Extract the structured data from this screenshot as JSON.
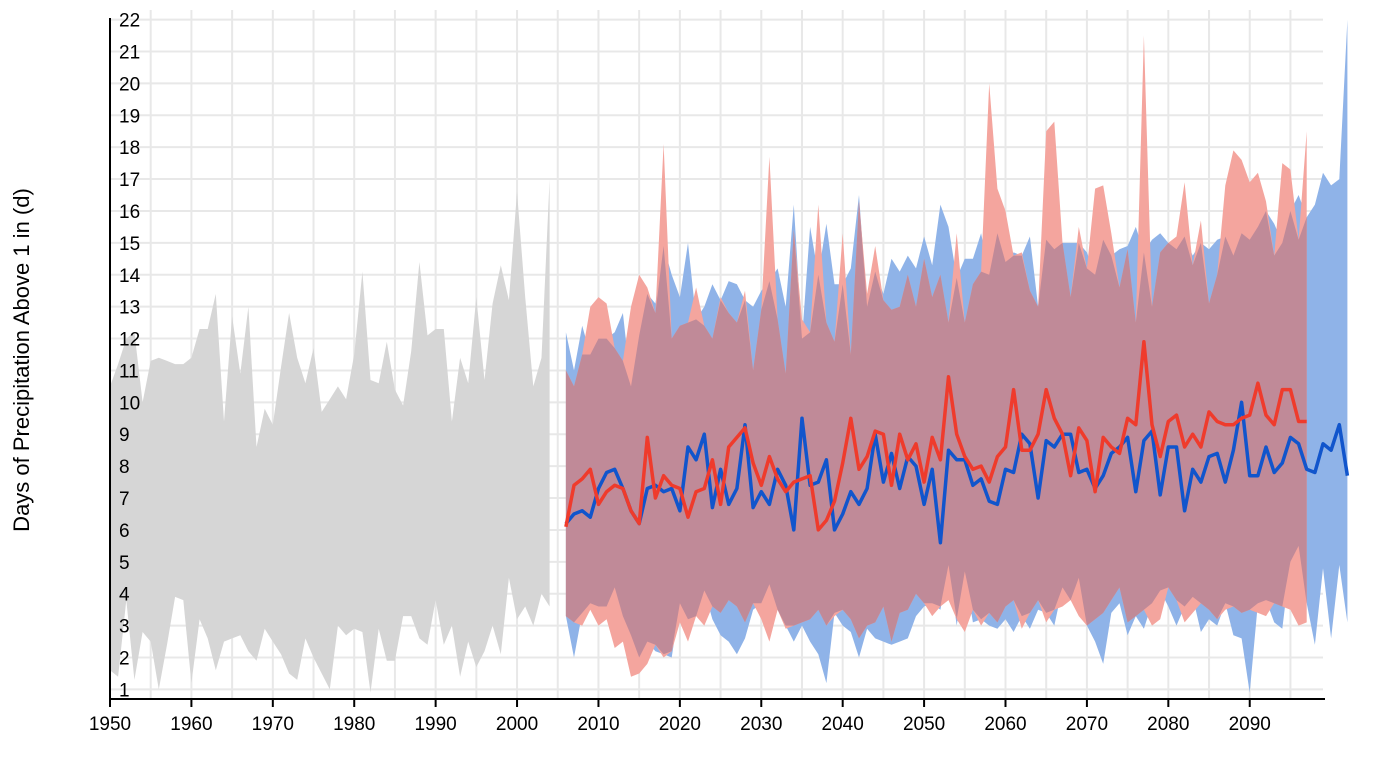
{
  "chart_data": {
    "type": "area",
    "title": "",
    "xlabel": "",
    "ylabel": "Days of Precipitation Above 1 in (d)",
    "xlim": [
      1950,
      2099
    ],
    "ylim": [
      0.7,
      22.3
    ],
    "x_ticks": [
      1950,
      1960,
      1970,
      1980,
      1990,
      2000,
      2010,
      2020,
      2030,
      2040,
      2050,
      2060,
      2070,
      2080,
      2090
    ],
    "y_ticks": [
      1,
      2,
      3,
      4,
      5,
      6,
      7,
      8,
      9,
      10,
      11,
      12,
      13,
      14,
      15,
      16,
      17,
      18,
      19,
      20,
      21,
      22
    ],
    "grid": true,
    "legend": "none",
    "colors": {
      "historical_band": "#d6d6d6",
      "lower_band": "#8fb3e8",
      "higher_band": "#f4a59e",
      "overlap_band": "#c08a98",
      "lower_line": "#1155cc",
      "higher_line": "#ef3b2c",
      "grid": "#e8e8e8",
      "axis": "#000000"
    },
    "historical": {
      "x_start": 1950,
      "max": [
        10.5,
        11.2,
        12.0,
        12.2,
        10.0,
        11.3,
        11.4,
        11.3,
        11.2,
        11.2,
        11.4,
        12.3,
        12.3,
        13.4,
        9.4,
        12.7,
        10.9,
        13.0,
        8.6,
        9.8,
        9.3,
        11.1,
        12.8,
        11.4,
        10.6,
        11.7,
        9.7,
        10.1,
        10.5,
        10.1,
        11.5,
        14.1,
        10.7,
        10.6,
        11.9,
        10.4,
        9.9,
        11.6,
        14.4,
        12.1,
        12.3,
        12.3,
        9.4,
        11.4,
        10.6,
        13.3,
        10.7,
        13.1,
        14.3,
        13.2,
        16.6,
        13.3,
        10.5,
        11.4,
        17.0
      ],
      "min": [
        1.6,
        1.4,
        3.8,
        1.3,
        2.8,
        2.5,
        1.0,
        2.4,
        3.9,
        3.8,
        1.2,
        3.2,
        2.6,
        1.6,
        2.5,
        2.6,
        2.7,
        2.2,
        1.9,
        2.9,
        2.5,
        2.1,
        1.5,
        1.3,
        2.6,
        2.0,
        1.5,
        1.0,
        3.0,
        2.7,
        2.9,
        2.8,
        0.9,
        2.9,
        1.9,
        1.9,
        3.3,
        3.3,
        2.6,
        2.4,
        3.8,
        2.4,
        3.0,
        1.4,
        2.5,
        1.7,
        2.2,
        3.0,
        2.1,
        4.5,
        3.2,
        3.6,
        3.0,
        4.0,
        3.6
      ]
    },
    "series": [
      {
        "key": "lower",
        "x_start": 2006,
        "values": [
          6.2,
          6.5,
          6.6,
          6.4,
          7.3,
          7.8,
          7.9,
          7.3,
          6.6,
          6.2,
          7.3,
          7.4,
          7.2,
          7.3,
          6.6,
          8.6,
          8.2,
          9.0,
          6.7,
          7.9,
          6.8,
          7.3,
          9.3,
          6.7,
          7.2,
          6.8,
          7.9,
          7.4,
          6.0,
          9.5,
          7.4,
          7.5,
          8.2,
          6.0,
          6.5,
          7.2,
          6.8,
          7.3,
          9.0,
          7.5,
          8.4,
          7.3,
          8.3,
          8.0,
          6.8,
          7.9,
          5.6,
          8.5,
          8.2,
          8.2,
          7.4,
          7.6,
          6.9,
          6.8,
          7.9,
          7.8,
          9.0,
          8.7,
          7.0,
          8.8,
          8.6,
          9.0,
          9.0,
          7.8,
          7.9,
          7.3,
          7.7,
          8.4,
          8.6,
          8.9,
          7.2,
          8.8,
          9.1,
          7.1,
          8.6,
          8.6,
          6.6,
          7.9,
          7.5,
          8.3,
          8.4,
          7.5,
          8.5,
          10.0,
          7.7,
          7.7,
          8.6,
          7.8,
          8.1,
          8.9,
          8.7,
          7.9,
          7.8,
          8.7,
          8.5,
          9.3,
          7.7
        ],
        "max": [
          12.2,
          11.0,
          12.4,
          11.5,
          12.0,
          12.0,
          12.2,
          12.8,
          10.5,
          12.1,
          13.4,
          13.1,
          14.9,
          14.0,
          13.3,
          15.0,
          12.6,
          13.0,
          13.7,
          13.2,
          13.8,
          13.7,
          13.2,
          13.0,
          13.5,
          13.8,
          14.2,
          13.0,
          16.2,
          12.0,
          15.5,
          14.0,
          15.6,
          13.7,
          13.7,
          14.2,
          16.5,
          13.0,
          14.1,
          13.4,
          14.5,
          14.1,
          14.6,
          14.2,
          15.2,
          14.3,
          16.2,
          15.5,
          13.9,
          14.5,
          14.5,
          15.3,
          14.0,
          15.3,
          14.4,
          14.7,
          14.6,
          15.2,
          13.0,
          15.1,
          14.8,
          15.0,
          15.0,
          15.0,
          14.7,
          14.0,
          15.1,
          14.6,
          14.8,
          14.9,
          15.5,
          14.7,
          15.1,
          15.3,
          15.0,
          14.8,
          15.2,
          14.6,
          15.0,
          14.8,
          15.1,
          15.2,
          14.6,
          15.3,
          15.1,
          15.5,
          16.0,
          15.6,
          15.0,
          16.0,
          16.5,
          15.8,
          16.2,
          17.2,
          16.8,
          17.0,
          22.0
        ],
        "min": [
          3.3,
          2.0,
          3.4,
          3.7,
          3.6,
          3.6,
          4.2,
          3.3,
          2.7,
          2.0,
          2.5,
          2.2,
          2.1,
          2.0,
          3.7,
          3.2,
          3.3,
          4.1,
          3.2,
          2.7,
          2.5,
          2.1,
          2.6,
          3.5,
          3.7,
          4.3,
          3.5,
          3.0,
          2.5,
          3.0,
          2.5,
          2.1,
          1.2,
          3.4,
          3.0,
          2.8,
          2.0,
          2.9,
          2.6,
          2.5,
          2.4,
          2.5,
          2.6,
          3.3,
          3.6,
          3.7,
          3.5,
          4.9,
          3.0,
          4.7,
          3.1,
          3.2,
          3.0,
          2.9,
          3.2,
          2.8,
          3.3,
          2.9,
          3.5,
          3.4,
          3.0,
          4.2,
          3.8,
          4.5,
          3.0,
          2.5,
          1.8,
          3.4,
          3.7,
          2.7,
          3.3,
          2.9,
          3.7,
          4.1,
          3.6,
          3.0,
          3.6,
          3.9,
          2.8,
          3.2,
          3.0,
          3.7,
          2.7,
          2.6,
          0.9,
          3.7,
          3.8,
          3.1,
          2.9,
          5.0,
          5.5,
          3.7,
          2.4,
          4.8,
          2.6,
          4.9,
          3.1
        ]
      },
      {
        "key": "higher",
        "x_start": 2006,
        "values": [
          6.1,
          7.4,
          7.6,
          7.9,
          6.8,
          7.2,
          7.4,
          7.3,
          6.6,
          6.2,
          8.9,
          7.0,
          7.7,
          7.4,
          7.3,
          6.4,
          7.2,
          7.3,
          8.2,
          6.8,
          8.6,
          8.9,
          9.2,
          8.1,
          7.4,
          8.3,
          7.6,
          7.2,
          7.5,
          7.6,
          7.7,
          6.0,
          6.3,
          6.9,
          8.1,
          9.5,
          7.9,
          8.3,
          9.1,
          9.0,
          7.4,
          9.0,
          8.2,
          8.7,
          7.5,
          8.9,
          8.2,
          10.8,
          9.0,
          8.3,
          7.9,
          8.0,
          7.5,
          8.3,
          8.6,
          10.4,
          8.5,
          8.5,
          9.0,
          10.4,
          9.5,
          9.0,
          7.7,
          9.2,
          8.8,
          7.2,
          8.9,
          8.6,
          8.4,
          9.5,
          9.3,
          11.9,
          9.3,
          8.3,
          9.4,
          9.6,
          8.6,
          9.0,
          8.6,
          9.7,
          9.4,
          9.3,
          9.3,
          9.5,
          9.6,
          10.6,
          9.6,
          9.3,
          10.4,
          10.4,
          9.4,
          9.4
        ],
        "max": [
          11.0,
          10.5,
          11.5,
          13.0,
          13.3,
          13.1,
          11.7,
          11.3,
          13.0,
          14.0,
          13.6,
          12.8,
          18.1,
          12.0,
          12.4,
          12.5,
          13.6,
          12.4,
          12.0,
          13.3,
          12.8,
          12.5,
          13.5,
          11.0,
          12.9,
          17.7,
          12.6,
          10.9,
          15.4,
          12.6,
          12.2,
          16.2,
          12.5,
          11.9,
          15.3,
          11.5,
          16.3,
          13.4,
          14.9,
          13.2,
          12.9,
          13.0,
          14.0,
          13.0,
          14.5,
          13.3,
          14.0,
          12.5,
          15.3,
          12.5,
          13.7,
          14.1,
          20.0,
          16.7,
          16.0,
          14.6,
          14.7,
          13.5,
          13.0,
          18.5,
          18.8,
          15.0,
          13.3,
          15.5,
          14.2,
          16.7,
          16.8,
          15.3,
          13.6,
          14.8,
          12.5,
          21.5,
          13.0,
          14.7,
          15.0,
          15.2,
          16.9,
          14.3,
          15.7,
          13.1,
          14.0,
          16.8,
          17.9,
          17.6,
          16.9,
          17.2,
          16.3,
          14.6,
          17.5,
          17.3,
          15.1,
          18.5
        ],
        "min": [
          3.3,
          3.1,
          3.0,
          3.5,
          3.0,
          3.2,
          2.3,
          2.5,
          1.4,
          1.5,
          1.8,
          2.4,
          2.0,
          2.2,
          3.1,
          2.5,
          3.3,
          3.0,
          3.6,
          3.4,
          3.8,
          3.6,
          3.1,
          3.7,
          3.2,
          2.5,
          3.5,
          2.9,
          3.0,
          3.1,
          3.2,
          3.5,
          3.0,
          3.3,
          3.5,
          3.2,
          2.6,
          3.0,
          3.1,
          3.6,
          2.5,
          3.4,
          3.5,
          4.0,
          3.7,
          3.3,
          3.6,
          3.8,
          3.2,
          2.8,
          3.5,
          3.0,
          3.4,
          3.1,
          3.6,
          3.8,
          2.9,
          3.4,
          3.8,
          3.1,
          3.5,
          3.6,
          3.8,
          3.3,
          3.0,
          3.2,
          3.4,
          3.8,
          4.2,
          3.1,
          3.3,
          3.5,
          3.0,
          3.2,
          4.2,
          3.8,
          3.1,
          3.4,
          3.7,
          3.5,
          3.2,
          3.5,
          3.6,
          3.4,
          3.5,
          3.4,
          3.3,
          3.7,
          3.6,
          3.5,
          3.0,
          3.1
        ]
      }
    ]
  }
}
